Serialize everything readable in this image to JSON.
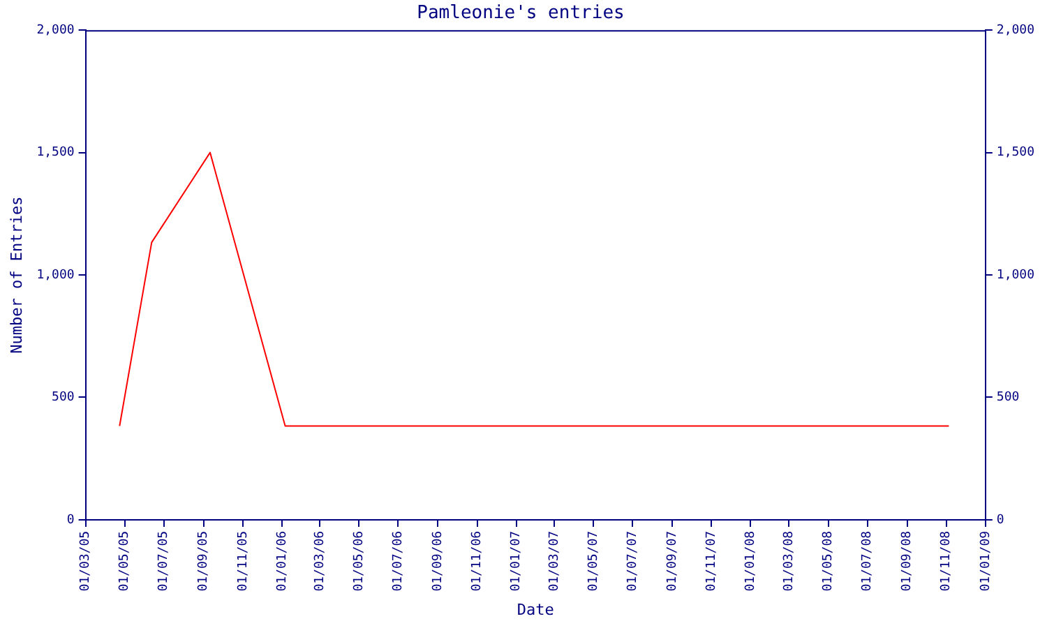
{
  "chart_data": {
    "type": "line",
    "title": "Pamleonie's entries",
    "xlabel": "Date",
    "ylabel": "Number of Entries",
    "x": [
      "2005-04-23",
      "2005-06-12",
      "2005-09-11",
      "2006-01-06",
      "2008-11-05"
    ],
    "series": [
      {
        "color": "#ff0000",
        "values": [
          383,
          1133,
          1500,
          383,
          383
        ]
      }
    ],
    "xlim": [
      "2005-03-01",
      "2009-01-01"
    ],
    "xticks": [
      {
        "value": "2005-03-01",
        "label": "01/03/05"
      },
      {
        "value": "2005-05-01",
        "label": "01/05/05"
      },
      {
        "value": "2005-07-01",
        "label": "01/07/05"
      },
      {
        "value": "2005-09-01",
        "label": "01/09/05"
      },
      {
        "value": "2005-11-01",
        "label": "01/11/05"
      },
      {
        "value": "2006-01-01",
        "label": "01/01/06"
      },
      {
        "value": "2006-03-01",
        "label": "01/03/06"
      },
      {
        "value": "2006-05-01",
        "label": "01/05/06"
      },
      {
        "value": "2006-07-01",
        "label": "01/07/06"
      },
      {
        "value": "2006-09-01",
        "label": "01/09/06"
      },
      {
        "value": "2006-11-01",
        "label": "01/11/06"
      },
      {
        "value": "2007-01-01",
        "label": "01/01/07"
      },
      {
        "value": "2007-03-01",
        "label": "01/03/07"
      },
      {
        "value": "2007-05-01",
        "label": "01/05/07"
      },
      {
        "value": "2007-07-01",
        "label": "01/07/07"
      },
      {
        "value": "2007-09-01",
        "label": "01/09/07"
      },
      {
        "value": "2007-11-01",
        "label": "01/11/07"
      },
      {
        "value": "2008-01-01",
        "label": "01/01/08"
      },
      {
        "value": "2008-03-01",
        "label": "01/03/08"
      },
      {
        "value": "2008-05-01",
        "label": "01/05/08"
      },
      {
        "value": "2008-07-01",
        "label": "01/07/08"
      },
      {
        "value": "2008-09-01",
        "label": "01/09/08"
      },
      {
        "value": "2008-11-01",
        "label": "01/11/08"
      },
      {
        "value": "2009-01-01",
        "label": "01/01/09"
      }
    ],
    "ylim": [
      0,
      2000
    ],
    "yticks": [
      {
        "value": 0,
        "label": "0"
      },
      {
        "value": 500,
        "label": "500"
      },
      {
        "value": 1000,
        "label": "1,000"
      },
      {
        "value": 1500,
        "label": "1,500"
      },
      {
        "value": 2000,
        "label": "2,000"
      }
    ],
    "y2lim": [
      0,
      2000
    ],
    "y2ticks": [
      {
        "value": 0,
        "label": "0"
      },
      {
        "value": 500,
        "label": "500"
      },
      {
        "value": 1000,
        "label": "1,000"
      },
      {
        "value": 1500,
        "label": "1,500"
      },
      {
        "value": 2000,
        "label": "2,000"
      }
    ],
    "grid": false,
    "legend": false,
    "marker": "none",
    "line_style": "solid"
  }
}
